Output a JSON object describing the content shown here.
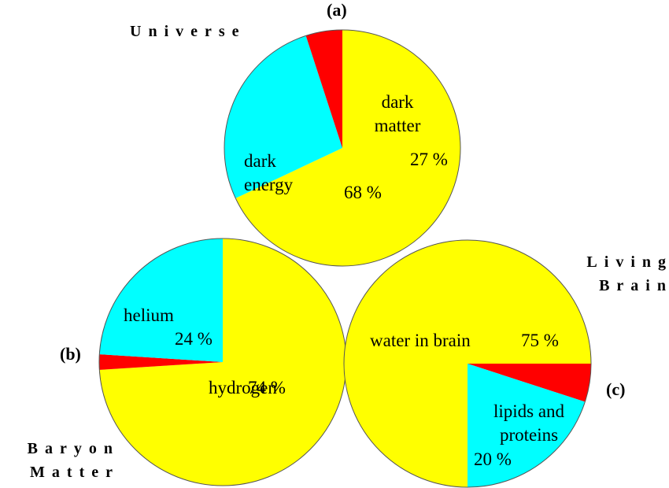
{
  "chart_data": [
    {
      "type": "pie",
      "title": "Universe",
      "panel": "(a)",
      "categories": [
        "dark energy",
        "dark matter",
        null
      ],
      "values": [
        68,
        27,
        5
      ],
      "value_labels": [
        "68 %",
        "27 %",
        null
      ],
      "colors": [
        "#ffff00",
        "#00ffff",
        "#ff0000"
      ]
    },
    {
      "type": "pie",
      "title": "Baryon Matter",
      "panel": "(b)",
      "categories": [
        "hydrogen",
        null,
        "helium"
      ],
      "values": [
        74,
        2,
        24
      ],
      "value_labels": [
        "74 %",
        null,
        "24 %"
      ],
      "colors": [
        "#ffff00",
        "#ff0000",
        "#00ffff"
      ]
    },
    {
      "type": "pie",
      "title": "Living Brain",
      "panel": "(c)",
      "categories": [
        null,
        "lipids and proteins",
        "water in brain"
      ],
      "values": [
        5,
        20,
        75
      ],
      "value_labels": [
        null,
        "20 %",
        "75 %"
      ],
      "colors": [
        "#ff0000",
        "#00ffff",
        "#ffff00"
      ]
    }
  ]
}
